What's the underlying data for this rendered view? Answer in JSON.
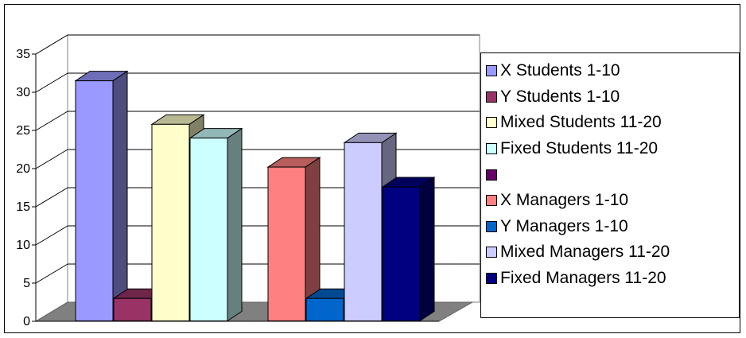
{
  "chart_data": {
    "type": "bar",
    "title": "",
    "xlabel": "",
    "ylabel": "",
    "ylim": [
      0,
      35
    ],
    "yticks": [
      0,
      5,
      10,
      15,
      20,
      25,
      30,
      35
    ],
    "grid": true,
    "legend_position": "right",
    "groups": 2,
    "series": [
      {
        "name": "X Students 1-10",
        "group": 0,
        "value": 31.5,
        "color": "#9999FF"
      },
      {
        "name": "Y Students 1-10",
        "group": 0,
        "value": 3,
        "color": "#993366"
      },
      {
        "name": "Mixed Students 11-20",
        "group": 0,
        "value": 25.8,
        "color": "#FFFFCC"
      },
      {
        "name": "Fixed Students 11-20",
        "group": 0,
        "value": 24,
        "color": "#CCFFFF"
      },
      {
        "name": "",
        "group": null,
        "value": null,
        "color": "#660066"
      },
      {
        "name": "X Managers  1-10",
        "group": 1,
        "value": 20.2,
        "color": "#FF8080"
      },
      {
        "name": "Y Managers 1-10",
        "group": 1,
        "value": 3,
        "color": "#0066CC"
      },
      {
        "name": "Mixed Managers 11-20",
        "group": 1,
        "value": 23.4,
        "color": "#CCCCFF"
      },
      {
        "name": "Fixed Managers 11-20",
        "group": 1,
        "value": 17.6,
        "color": "#000080"
      }
    ]
  }
}
